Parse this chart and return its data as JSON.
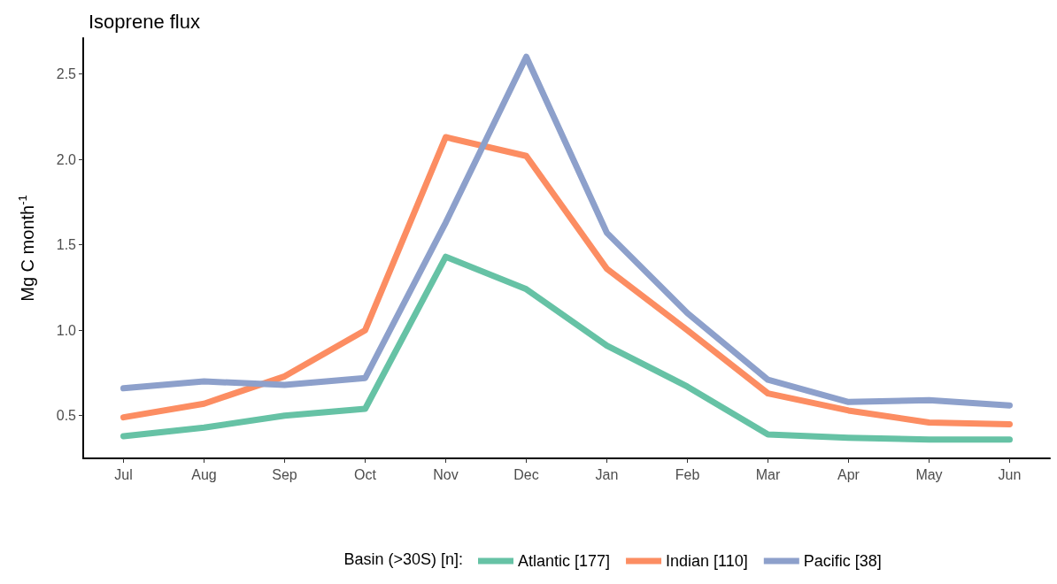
{
  "chart_data": {
    "type": "line",
    "title": "Isoprene flux",
    "ylabel": "Mg C month$^{-1}$",
    "legend_title": "Basin (>30S) [n]:",
    "categories": [
      "Jul",
      "Aug",
      "Sep",
      "Oct",
      "Nov",
      "Dec",
      "Jan",
      "Feb",
      "Mar",
      "Apr",
      "May",
      "Jun"
    ],
    "series": [
      {
        "name": "Atlantic [177]",
        "color": "#66c2a5",
        "values": [
          0.38,
          0.43,
          0.5,
          0.54,
          1.43,
          1.24,
          0.91,
          0.67,
          0.39,
          0.37,
          0.36,
          0.36
        ]
      },
      {
        "name": "Indian [110]",
        "color": "#fc8d62",
        "values": [
          0.49,
          0.57,
          0.73,
          1.0,
          2.13,
          2.02,
          1.36,
          1.0,
          0.63,
          0.53,
          0.46,
          0.45
        ]
      },
      {
        "name": "Pacific [38]",
        "color": "#8da0cb",
        "values": [
          0.66,
          0.7,
          0.68,
          0.72,
          1.63,
          2.6,
          1.57,
          1.1,
          0.71,
          0.58,
          0.59,
          0.56
        ]
      }
    ],
    "ylim": [
      0.25,
      2.71
    ],
    "yticks": [
      0.5,
      {
        "value": 1,
        "label": "1.0"
      },
      1.5,
      {
        "value": 2,
        "label": "2.0"
      },
      2.5
    ],
    "grid": false,
    "legend": "bottom",
    "marker": "none",
    "line_style": "solid"
  }
}
